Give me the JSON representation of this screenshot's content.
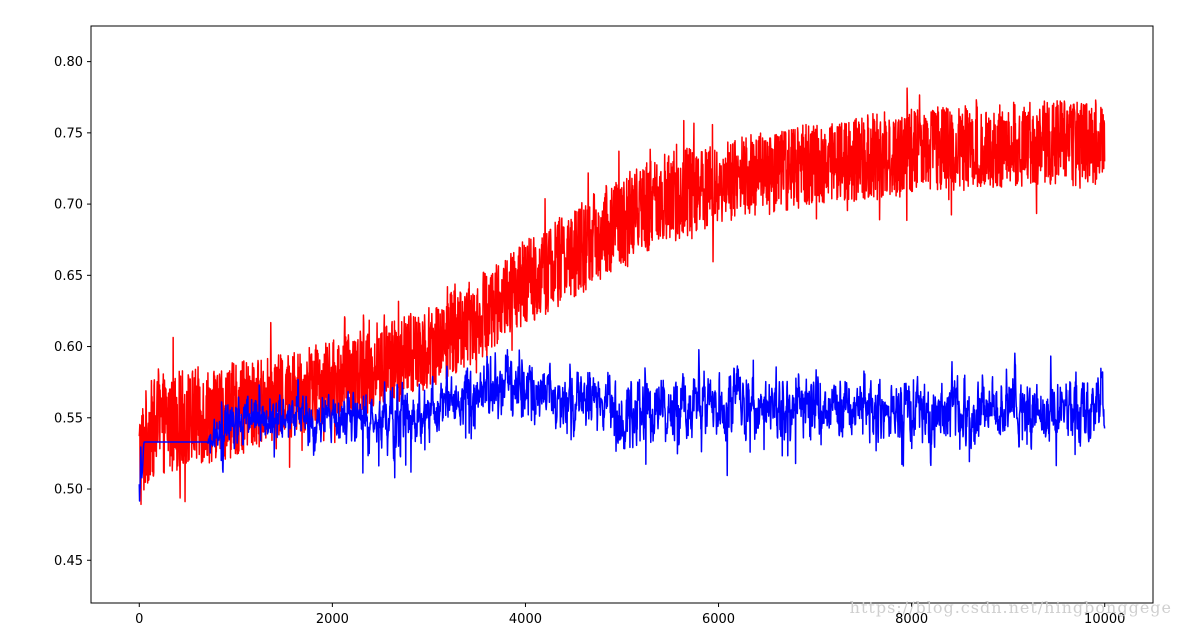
{
  "chart_data": {
    "type": "line",
    "xlim": [
      -500,
      10500
    ],
    "ylim": [
      0.42,
      0.825
    ],
    "x_ticks": [
      0,
      2000,
      4000,
      6000,
      8000,
      10000
    ],
    "x_tick_labels": [
      "0",
      "2000",
      "4000",
      "6000",
      "8000",
      "10000"
    ],
    "y_ticks": [
      0.45,
      0.5,
      0.55,
      0.6,
      0.65,
      0.7,
      0.75,
      0.8
    ],
    "y_tick_labels": [
      "0.45",
      "0.50",
      "0.55",
      "0.60",
      "0.65",
      "0.70",
      "0.75",
      "0.80"
    ],
    "grid": false,
    "series": [
      {
        "color": "#ff0000",
        "x": [
          0,
          100,
          200,
          500,
          800,
          1000,
          1500,
          2000,
          2500,
          3000,
          3500,
          4000,
          4500,
          5000,
          5500,
          6000,
          6500,
          7000,
          7500,
          8000,
          8500,
          9000,
          9500,
          10000
        ],
        "y": [
          0.52,
          0.54,
          0.545,
          0.55,
          0.553,
          0.556,
          0.565,
          0.575,
          0.585,
          0.6,
          0.62,
          0.645,
          0.665,
          0.69,
          0.705,
          0.715,
          0.722,
          0.728,
          0.733,
          0.737,
          0.74,
          0.742,
          0.743,
          0.743
        ],
        "noise_amplitude": [
          0.04,
          0.035,
          0.035,
          0.035,
          0.034,
          0.033,
          0.03,
          0.03,
          0.03,
          0.03,
          0.03,
          0.03,
          0.032,
          0.032,
          0.032,
          0.03,
          0.03,
          0.03,
          0.03,
          0.03,
          0.03,
          0.03,
          0.03,
          0.03
        ],
        "y_range": [
          0.44,
          0.807
        ]
      },
      {
        "color": "#0000ff",
        "x": [
          0,
          50,
          100,
          700,
          800,
          1000,
          1500,
          2000,
          2500,
          3000,
          3500,
          3800,
          4000,
          4500,
          5000,
          5500,
          6000,
          6500,
          7000,
          7500,
          8000,
          8500,
          9000,
          9500,
          10000
        ],
        "y": [
          0.5,
          0.533,
          0.533,
          0.533,
          0.538,
          0.545,
          0.552,
          0.55,
          0.548,
          0.555,
          0.565,
          0.575,
          0.572,
          0.562,
          0.555,
          0.558,
          0.56,
          0.558,
          0.557,
          0.556,
          0.555,
          0.553,
          0.555,
          0.556,
          0.556
        ],
        "noise_amplitude": [
          0.02,
          0.0,
          0.0,
          0.0,
          0.012,
          0.014,
          0.012,
          0.012,
          0.014,
          0.016,
          0.016,
          0.018,
          0.016,
          0.016,
          0.017,
          0.017,
          0.017,
          0.016,
          0.016,
          0.016,
          0.017,
          0.017,
          0.017,
          0.017,
          0.017
        ],
        "y_range": [
          0.466,
          0.603
        ]
      }
    ]
  },
  "watermark": {
    "text": "https://blog.csdn.net/hingbonggege",
    "color": "#cfcfcf"
  }
}
